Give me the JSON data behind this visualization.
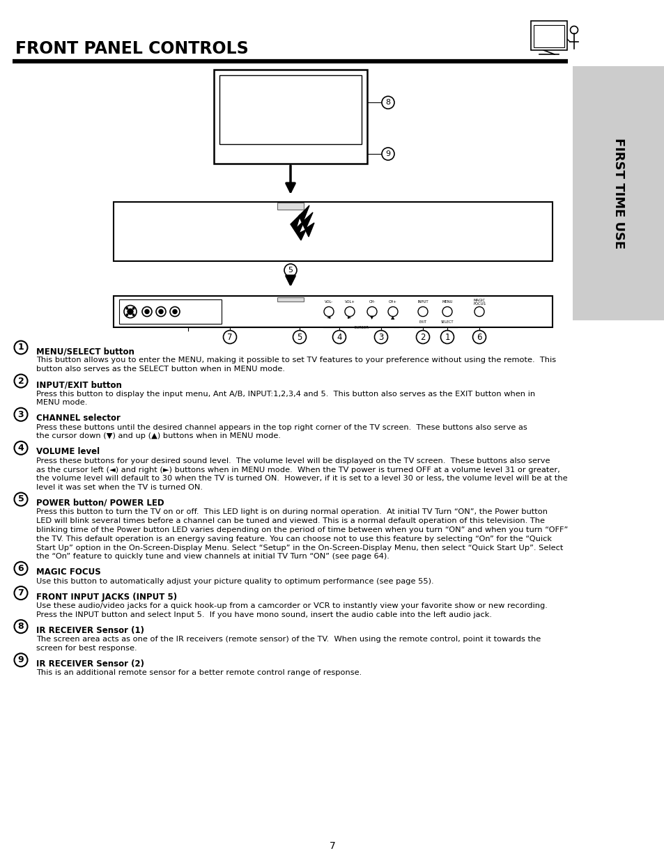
{
  "title": "FRONT PANEL CONTROLS",
  "sidebar_text": "FIRST TIME USE",
  "page_number": "7",
  "background_color": "#ffffff",
  "text_color": "#000000",
  "sidebar_bg": "#cccccc",
  "title_fontsize": 17,
  "body_fontsize": 8.2,
  "bold_fontsize": 8.5,
  "sections": [
    {
      "number": "1",
      "heading": "MENU/SELECT button",
      "body": "This button allows you to enter the MENU, making it possible to set TV features to your preference without using the remote.  This\nbutton also serves as the SELECT button when in MENU mode."
    },
    {
      "number": "2",
      "heading": "INPUT/EXIT button",
      "body": "Press this button to display the input menu, Ant A/B, INPUT:1,2,3,4 and 5.  This button also serves as the EXIT button when in\nMENU mode."
    },
    {
      "number": "3",
      "heading": "CHANNEL selector",
      "body": "Press these buttons until the desired channel appears in the top right corner of the TV screen.  These buttons also serve as\nthe cursor down (▼) and up (▲) buttons when in MENU mode."
    },
    {
      "number": "4",
      "heading": "VOLUME level",
      "body": "Press these buttons for your desired sound level.  The volume level will be displayed on the TV screen.  These buttons also serve\nas the cursor left (◄) and right (►) buttons when in MENU mode.  When the TV power is turned OFF at a volume level 31 or greater,\nthe volume level will default to 30 when the TV is turned ON.  However, if it is set to a level 30 or less, the volume level will be at the\nlevel it was set when the TV is turned ON."
    },
    {
      "number": "5",
      "heading": "POWER button/ POWER LED",
      "body": "Press this button to turn the TV on or off.  This LED light is on during normal operation.  At initial TV Turn “ON”, the Power button\nLED will blink several times before a channel can be tuned and viewed. This is a normal default operation of this television. The\nblinking time of the Power button LED varies depending on the period of time between when you turn “ON” and when you turn “OFF”\nthe TV. This default operation is an energy saving feature. You can choose not to use this feature by selecting “On” for the “Quick\nStart Up” option in the On-Screen-Display Menu. Select “Setup” in the On-Screen-Display Menu, then select “Quick Start Up”. Select\nthe “On” feature to quickly tune and view channels at initial TV Turn “ON” (see page 64)."
    },
    {
      "number": "6",
      "heading": "MAGIC FOCUS",
      "body": "Use this button to automatically adjust your picture quality to optimum performance (see page 55)."
    },
    {
      "number": "7",
      "heading": "FRONT INPUT JACKS (INPUT 5)",
      "body": "Use these audio/video jacks for a quick hook-up from a camcorder or VCR to instantly view your favorite show or new recording.\nPress the INPUT button and select Input 5.  If you have mono sound, insert the audio cable into the left audio jack."
    },
    {
      "number": "8",
      "heading": "IR RECEIVER Sensor (1)",
      "body": "The screen area acts as one of the IR receivers (remote sensor) of the TV.  When using the remote control, point it towards the\nscreen for best response."
    },
    {
      "number": "9",
      "heading": "IR RECEIVER Sensor (2)",
      "body": "This is an additional remote sensor for a better remote control range of response."
    }
  ]
}
